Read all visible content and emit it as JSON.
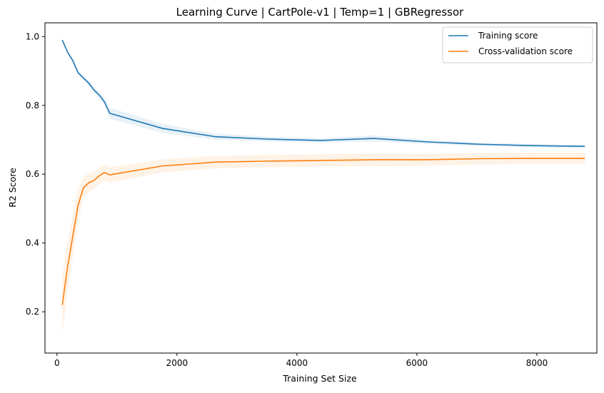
{
  "chart_data": {
    "type": "line",
    "title": "Learning Curve | CartPole-v1 | Temp=1 | GBRegressor",
    "xlabel": "Training Set Size",
    "ylabel": "R2 Score",
    "xlim": [
      -200,
      9000
    ],
    "ylim": [
      0.08,
      1.04
    ],
    "xticks": [
      0,
      2000,
      4000,
      6000,
      8000
    ],
    "xtick_labels": [
      "0",
      "2000",
      "4000",
      "6000",
      "8000"
    ],
    "yticks": [
      0.2,
      0.4,
      0.6,
      0.8,
      1.0
    ],
    "ytick_labels": [
      "0.2",
      "0.4",
      "0.6",
      "0.8",
      "1.0"
    ],
    "grid": false,
    "legend_position": "top-right",
    "x": [
      88,
      176,
      264,
      352,
      440,
      528,
      616,
      704,
      792,
      880,
      1760,
      2640,
      3520,
      4400,
      5280,
      6160,
      7040,
      7920,
      8800
    ],
    "series": [
      {
        "name": "Training score",
        "color": "#1f77b4",
        "values": [
          0.99,
          0.955,
          0.93,
          0.895,
          0.88,
          0.865,
          0.845,
          0.83,
          0.81,
          0.777,
          0.733,
          0.709,
          0.702,
          0.698,
          0.704,
          0.694,
          0.687,
          0.683,
          0.681
        ],
        "std": [
          0.003,
          0.004,
          0.005,
          0.006,
          0.006,
          0.007,
          0.008,
          0.009,
          0.011,
          0.016,
          0.013,
          0.009,
          0.007,
          0.006,
          0.009,
          0.006,
          0.005,
          0.005,
          0.004
        ]
      },
      {
        "name": "Cross-validation score",
        "color": "#ff7f0e",
        "values": [
          0.22,
          0.33,
          0.42,
          0.51,
          0.56,
          0.575,
          0.582,
          0.595,
          0.605,
          0.598,
          0.624,
          0.635,
          0.638,
          0.64,
          0.642,
          0.642,
          0.645,
          0.646,
          0.646
        ],
        "std": [
          0.085,
          0.075,
          0.06,
          0.045,
          0.032,
          0.027,
          0.025,
          0.024,
          0.023,
          0.022,
          0.019,
          0.018,
          0.018,
          0.018,
          0.018,
          0.017,
          0.017,
          0.017,
          0.017
        ]
      }
    ]
  }
}
